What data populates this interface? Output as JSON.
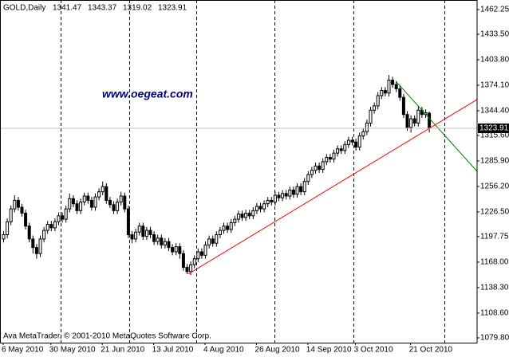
{
  "chart_data": {
    "type": "candlestick",
    "title": "GOLD,Daily",
    "watermark": "www.oegeat.com",
    "footer": "Ava MetaTrader, © 2001-2010 MetaQuotes Software Corp.",
    "categories": [
      "6 May 2010",
      null,
      null,
      null,
      null,
      null,
      null,
      null,
      null,
      null,
      null,
      null,
      null,
      "30 May 2010",
      null,
      null,
      null,
      null,
      null,
      null,
      null,
      null,
      null,
      null,
      null,
      null,
      null,
      "21 Jun 2010",
      null,
      null,
      null,
      null,
      null,
      null,
      null,
      null,
      null,
      null,
      null,
      null,
      null,
      "13 Jul 2010",
      null,
      null,
      null,
      null,
      null,
      null,
      null,
      null,
      null,
      null,
      null,
      null,
      null,
      "4 Aug 2010",
      null,
      null,
      null,
      null,
      null,
      null,
      null,
      null,
      null,
      null,
      null,
      null,
      null,
      "26 Aug 2010",
      null,
      null,
      null,
      null,
      null,
      null,
      null,
      null,
      null,
      null,
      null,
      null,
      null,
      "14 Sep 2010",
      null,
      null,
      null,
      null,
      null,
      null,
      null,
      null,
      null,
      null,
      null,
      null,
      "3 Oct 2010",
      null,
      null,
      null,
      null,
      null,
      null,
      null,
      null,
      null,
      null,
      null,
      null,
      null,
      null,
      "21 Oct 2010",
      null,
      null,
      null,
      null,
      null
    ],
    "open": [
      1195,
      1200,
      1215,
      1230,
      1240,
      1232,
      1225,
      1210,
      1195,
      1185,
      1178,
      1195,
      1205,
      1212,
      1208,
      1215,
      1222,
      1218,
      1230,
      1242,
      1236,
      1228,
      1238,
      1245,
      1240,
      1232,
      1244,
      1250,
      1256,
      1240,
      1235,
      1228,
      1238,
      1245,
      1230,
      1200,
      1195,
      1203,
      1210,
      1198,
      1205,
      1200,
      1192,
      1196,
      1188,
      1192,
      1185,
      1180,
      1186,
      1178,
      1162,
      1157,
      1165,
      1172,
      1180,
      1176,
      1188,
      1195,
      1190,
      1200,
      1205,
      1210,
      1206,
      1214,
      1218,
      1224,
      1220,
      1225,
      1222,
      1228,
      1233,
      1230,
      1236,
      1240,
      1238,
      1246,
      1243,
      1248,
      1245,
      1252,
      1247,
      1256,
      1250,
      1262,
      1270,
      1275,
      1280,
      1276,
      1285,
      1290,
      1288,
      1295,
      1300,
      1298,
      1305,
      1310,
      1308,
      1302,
      1315,
      1320,
      1330,
      1345,
      1350,
      1362,
      1368,
      1365,
      1380,
      1375,
      1370,
      1360,
      1340,
      1325,
      1335,
      1330,
      1345,
      1340,
      1341.47
    ],
    "high": [
      1204,
      1219,
      1234,
      1246,
      1244,
      1236,
      1229,
      1214,
      1199,
      1189,
      1199,
      1209,
      1216,
      1216,
      1219,
      1226,
      1226,
      1234,
      1248,
      1246,
      1240,
      1242,
      1249,
      1249,
      1244,
      1248,
      1254,
      1262,
      1260,
      1244,
      1239,
      1242,
      1250,
      1249,
      1234,
      1204,
      1207,
      1214,
      1214,
      1209,
      1209,
      1204,
      1200,
      1200,
      1196,
      1196,
      1189,
      1190,
      1190,
      1182,
      1166,
      1169,
      1176,
      1184,
      1184,
      1192,
      1199,
      1199,
      1204,
      1209,
      1214,
      1214,
      1218,
      1222,
      1228,
      1228,
      1229,
      1229,
      1232,
      1237,
      1237,
      1240,
      1244,
      1244,
      1250,
      1250,
      1252,
      1252,
      1256,
      1256,
      1260,
      1260,
      1266,
      1274,
      1279,
      1284,
      1284,
      1289,
      1294,
      1294,
      1299,
      1304,
      1304,
      1309,
      1314,
      1314,
      1312,
      1319,
      1324,
      1334,
      1349,
      1354,
      1366,
      1372,
      1372,
      1386,
      1384,
      1379,
      1374,
      1364,
      1344,
      1339,
      1339,
      1349,
      1349,
      1346,
      1343.37
    ],
    "low": [
      1191,
      1196,
      1211,
      1226,
      1228,
      1221,
      1206,
      1191,
      1178,
      1172,
      1174,
      1191,
      1201,
      1204,
      1204,
      1211,
      1214,
      1214,
      1226,
      1232,
      1224,
      1224,
      1234,
      1236,
      1228,
      1228,
      1240,
      1246,
      1236,
      1231,
      1224,
      1224,
      1234,
      1226,
      1196,
      1190,
      1191,
      1199,
      1194,
      1194,
      1196,
      1188,
      1188,
      1184,
      1184,
      1181,
      1176,
      1176,
      1172,
      1158,
      1154,
      1153,
      1161,
      1168,
      1172,
      1172,
      1184,
      1186,
      1186,
      1196,
      1201,
      1202,
      1202,
      1210,
      1214,
      1216,
      1216,
      1218,
      1218,
      1224,
      1226,
      1226,
      1232,
      1234,
      1234,
      1239,
      1239,
      1241,
      1241,
      1243,
      1243,
      1246,
      1246,
      1258,
      1266,
      1271,
      1272,
      1272,
      1281,
      1284,
      1284,
      1291,
      1294,
      1294,
      1301,
      1304,
      1298,
      1298,
      1311,
      1316,
      1326,
      1341,
      1346,
      1358,
      1361,
      1361,
      1371,
      1366,
      1356,
      1336,
      1321,
      1319,
      1326,
      1326,
      1336,
      1336,
      1319.02
    ],
    "close": [
      1200,
      1215,
      1230,
      1240,
      1232,
      1225,
      1210,
      1195,
      1185,
      1178,
      1195,
      1205,
      1212,
      1208,
      1215,
      1222,
      1218,
      1230,
      1242,
      1236,
      1228,
      1238,
      1245,
      1240,
      1232,
      1244,
      1250,
      1256,
      1240,
      1235,
      1228,
      1238,
      1245,
      1230,
      1200,
      1195,
      1203,
      1210,
      1198,
      1205,
      1200,
      1192,
      1196,
      1188,
      1192,
      1185,
      1180,
      1186,
      1178,
      1162,
      1157,
      1165,
      1172,
      1180,
      1176,
      1188,
      1195,
      1190,
      1200,
      1205,
      1210,
      1206,
      1214,
      1218,
      1224,
      1220,
      1225,
      1222,
      1228,
      1233,
      1230,
      1236,
      1240,
      1238,
      1246,
      1243,
      1248,
      1245,
      1252,
      1247,
      1256,
      1250,
      1262,
      1270,
      1275,
      1280,
      1276,
      1285,
      1290,
      1288,
      1295,
      1300,
      1298,
      1305,
      1310,
      1308,
      1302,
      1315,
      1320,
      1330,
      1345,
      1350,
      1362,
      1368,
      1365,
      1380,
      1375,
      1370,
      1360,
      1340,
      1325,
      1335,
      1330,
      1345,
      1340,
      1342,
      1323.91
    ],
    "bull_color": "#ffffff",
    "bear_color": "#000000",
    "wick_color": "#000000",
    "trendlines": [
      {
        "color": "#ff0000",
        "x": [
          50.4,
          129.1
        ],
        "y": [
          1154.1,
          1357.4
        ]
      },
      {
        "color": "#008000",
        "x": [
          107.2,
          129.1
        ],
        "y": [
          1377.8,
          1273.9
        ]
      }
    ],
    "ylim": [
      1074.2,
      1473.4
    ],
    "yticks": [
      1462.25,
      {
        "value": 1433.5,
        "label": "1433.50"
      },
      {
        "value": 1403.8,
        "label": "1403.80"
      },
      {
        "value": 1374.1,
        "label": "1374.10"
      },
      {
        "value": 1344.4,
        "label": "1344.40"
      },
      {
        "value": 1315.6,
        "label": "1315.60"
      },
      {
        "value": 1285.9,
        "label": "1285.90"
      },
      {
        "value": 1256.2,
        "label": "1256.20"
      },
      {
        "value": 1226.5,
        "label": "1226.50"
      },
      1197.75,
      {
        "value": 1168.0,
        "label": "1168.00"
      },
      {
        "value": 1138.3,
        "label": "1138.30"
      },
      {
        "value": 1108.6,
        "label": "1108.60"
      },
      {
        "value": 1079.8,
        "label": "1079.80"
      }
    ]
  }
}
